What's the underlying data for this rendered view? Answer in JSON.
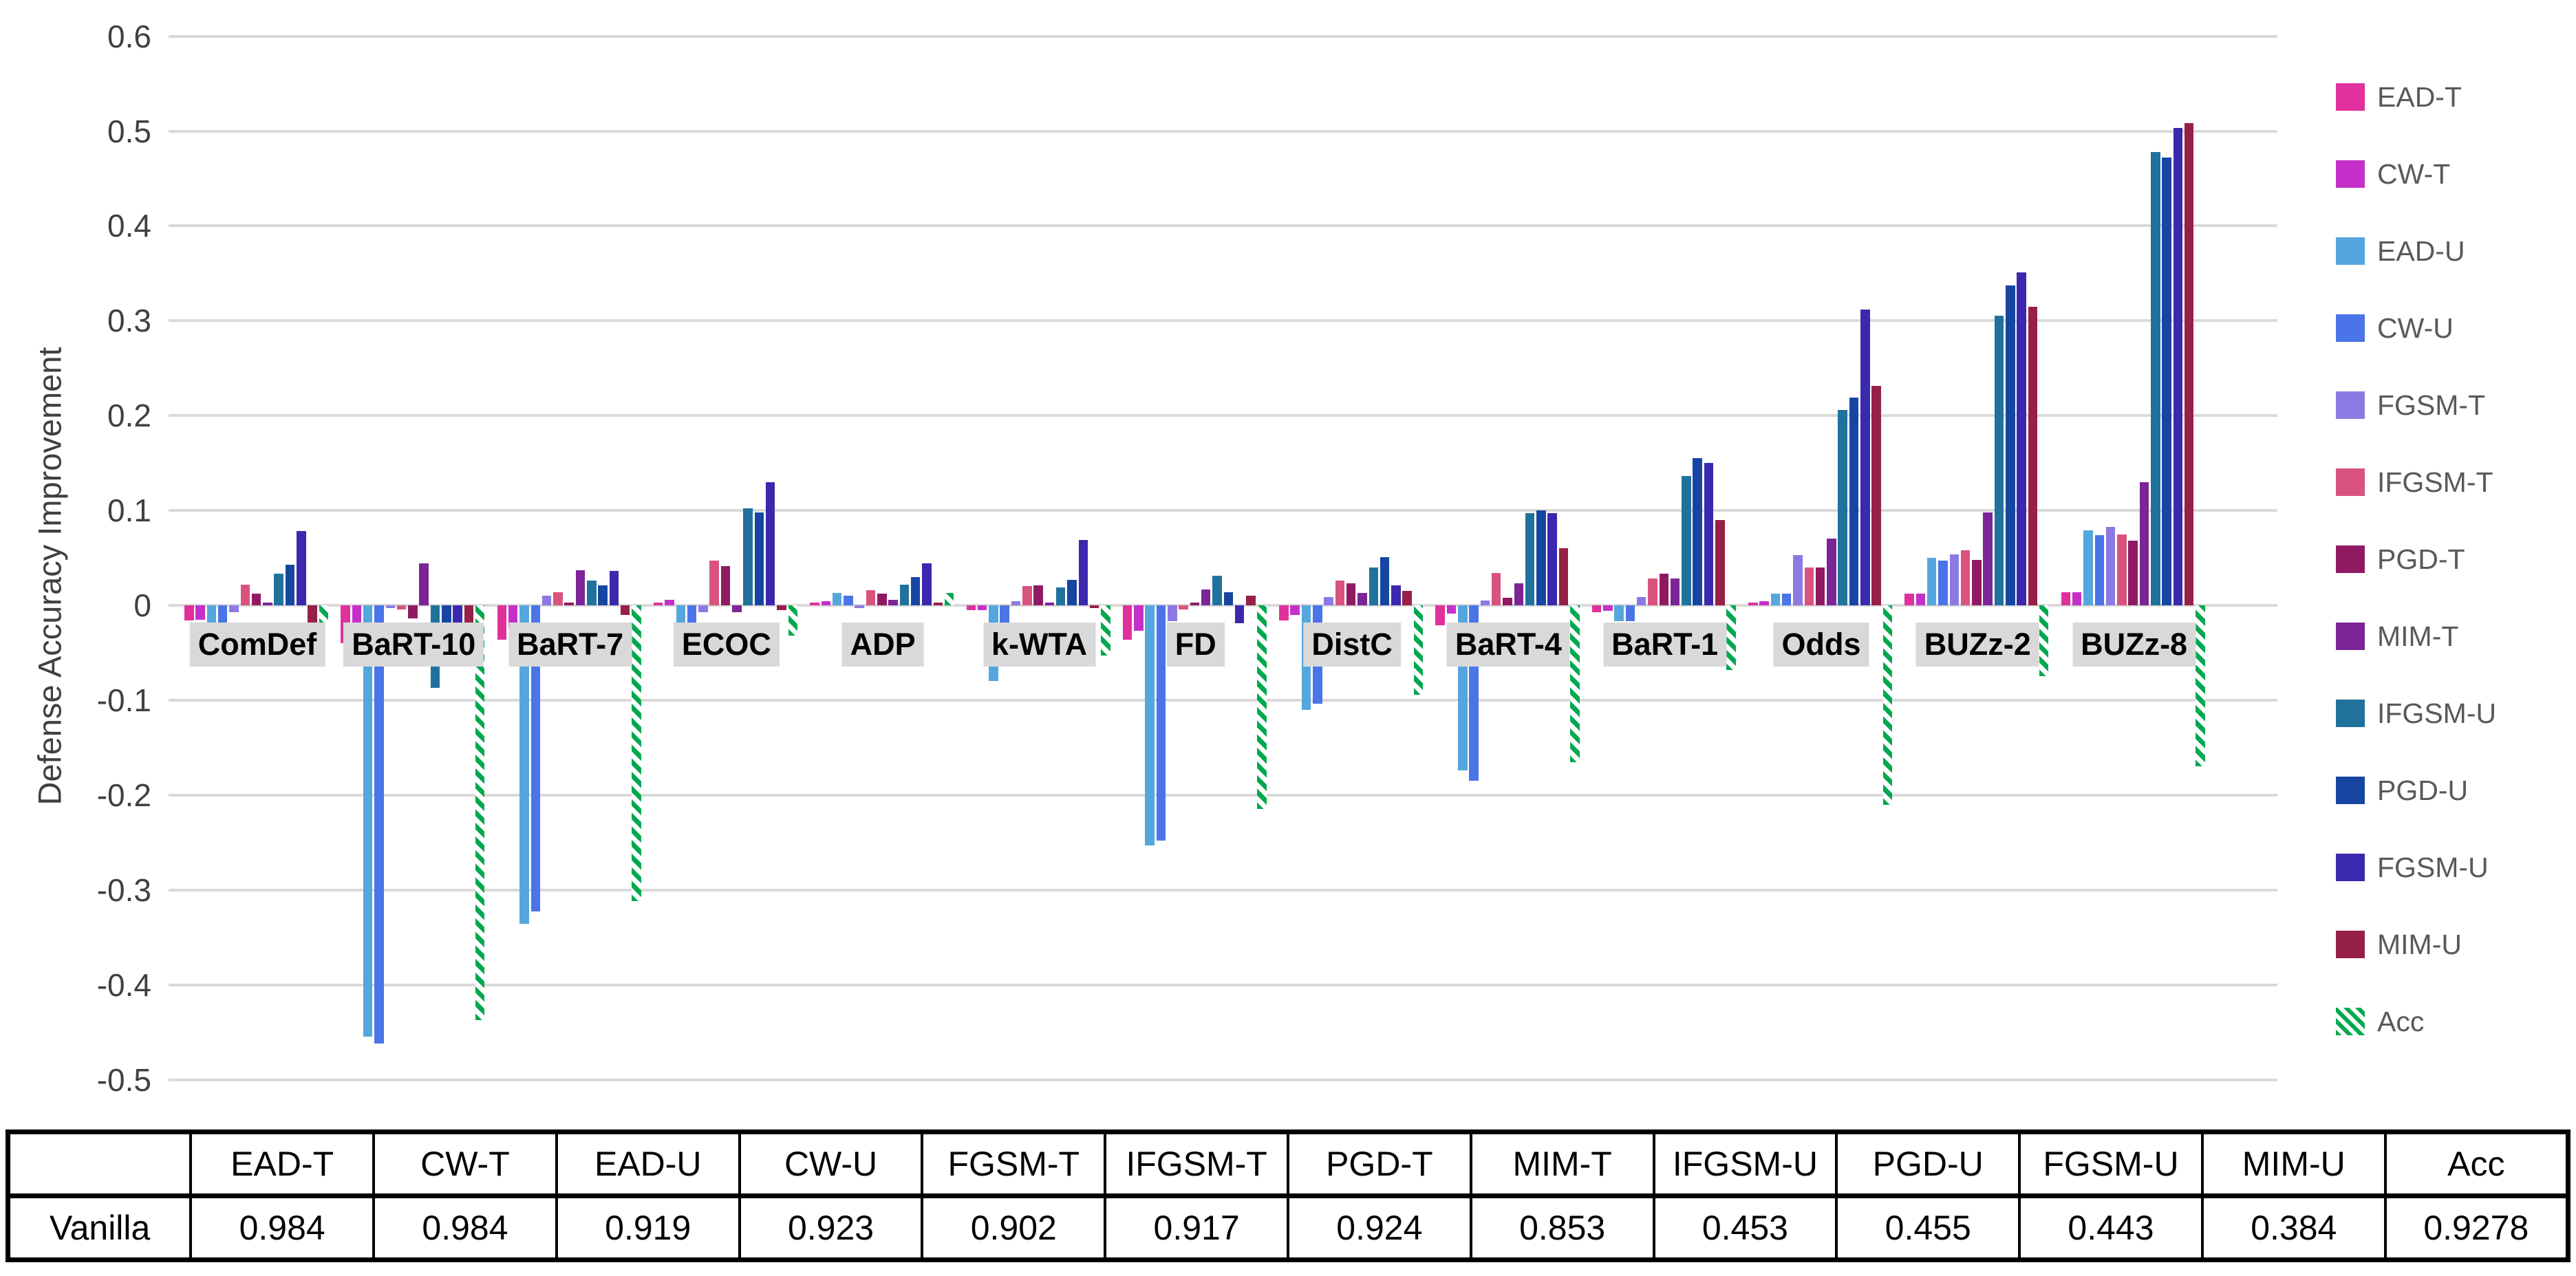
{
  "chart_data": {
    "type": "bar",
    "title": "",
    "xlabel": "",
    "ylabel": "Defense Accuracy Improvement",
    "ylim": [
      -0.5,
      0.6
    ],
    "ytick_values": [
      0.6,
      0.5,
      0.4,
      0.3,
      0.2,
      0.1,
      0,
      -0.1,
      -0.2,
      -0.3,
      -0.4,
      -0.5
    ],
    "ytick_labels": [
      "0.6",
      "0.5",
      "0.4",
      "0.3",
      "0.2",
      "0.1",
      "0",
      "-0.1",
      "-0.2",
      "-0.3",
      "-0.4",
      "-0.5"
    ],
    "grid": "horizontal-only",
    "legend_position": "right",
    "categories": [
      "ComDef",
      "BaRT-10",
      "BaRT-7",
      "ECOC",
      "ADP",
      "k-WTA",
      "FD",
      "DistC",
      "BaRT-4",
      "BaRT-1",
      "Odds",
      "BUZz-2",
      "BUZz-8"
    ],
    "series": [
      {
        "name": "EAD-T",
        "color": "#e0309b",
        "pattern": "solid",
        "values": [
          -0.016,
          -0.04,
          -0.036,
          0.003,
          0.003,
          -0.005,
          -0.036,
          -0.016,
          -0.021,
          -0.007,
          0.003,
          0.012,
          0.014
        ]
      },
      {
        "name": "CW-T",
        "color": "#c430c9",
        "pattern": "solid",
        "values": [
          -0.015,
          -0.04,
          -0.025,
          0.006,
          0.004,
          -0.005,
          -0.027,
          -0.01,
          -0.009,
          -0.006,
          0.004,
          0.012,
          0.014
        ]
      },
      {
        "name": "EAD-U",
        "color": "#55a6de",
        "pattern": "solid",
        "values": [
          -0.018,
          -0.455,
          -0.336,
          -0.022,
          0.013,
          -0.08,
          -0.253,
          -0.11,
          -0.174,
          -0.017,
          0.012,
          0.05,
          0.079
        ]
      },
      {
        "name": "CW-U",
        "color": "#4a74e8",
        "pattern": "solid",
        "values": [
          -0.018,
          -0.462,
          -0.323,
          -0.018,
          0.01,
          -0.025,
          -0.248,
          -0.104,
          -0.185,
          -0.017,
          0.012,
          0.047,
          0.074
        ]
      },
      {
        "name": "FGSM-T",
        "color": "#8d79e3",
        "pattern": "solid",
        "values": [
          -0.007,
          -0.003,
          0.01,
          -0.007,
          -0.003,
          0.004,
          -0.017,
          0.009,
          0.005,
          0.009,
          0.053,
          0.054,
          0.083
        ]
      },
      {
        "name": "IFGSM-T",
        "color": "#d9537e",
        "pattern": "solid",
        "values": [
          0.022,
          -0.004,
          0.014,
          0.047,
          0.016,
          0.02,
          -0.004,
          0.026,
          0.034,
          0.028,
          0.04,
          0.058,
          0.075
        ]
      },
      {
        "name": "PGD-T",
        "color": "#8f1a63",
        "pattern": "solid",
        "values": [
          0.012,
          -0.014,
          0.003,
          0.041,
          0.012,
          0.021,
          0.001,
          0.023,
          0.008,
          0.033,
          0.04,
          0.048,
          0.068
        ]
      },
      {
        "name": "MIM-T",
        "color": "#7b2596",
        "pattern": "solid",
        "values": [
          0.003,
          0.044,
          0.037,
          -0.007,
          0.006,
          0.003,
          0.017,
          0.013,
          0.023,
          0.028,
          0.07,
          0.098,
          0.13
        ]
      },
      {
        "name": "IFGSM-U",
        "color": "#20729c",
        "pattern": "solid",
        "values": [
          0.033,
          -0.087,
          0.026,
          0.102,
          0.022,
          0.019,
          0.031,
          0.04,
          0.097,
          0.136,
          0.206,
          0.305,
          0.478
        ]
      },
      {
        "name": "PGD-U",
        "color": "#1746a2",
        "pattern": "solid",
        "values": [
          0.043,
          -0.05,
          0.021,
          0.098,
          0.03,
          0.027,
          0.014,
          0.051,
          0.1,
          0.155,
          0.219,
          0.337,
          0.472
        ]
      },
      {
        "name": "FGSM-U",
        "color": "#3a28ae",
        "pattern": "solid",
        "values": [
          0.078,
          -0.05,
          0.036,
          0.13,
          0.044,
          0.069,
          -0.019,
          0.021,
          0.097,
          0.15,
          0.312,
          0.351,
          0.503
        ]
      },
      {
        "name": "MIM-U",
        "color": "#962047",
        "pattern": "solid",
        "values": [
          -0.018,
          -0.05,
          -0.01,
          -0.005,
          0.002,
          -0.003,
          0.01,
          0.015,
          0.06,
          0.09,
          0.231,
          0.315,
          0.508
        ]
      },
      {
        "name": "Acc",
        "color": "#00a84f",
        "pattern": "green-diagonal-hatch",
        "values": [
          -0.02,
          -0.437,
          -0.312,
          -0.032,
          0.013,
          -0.053,
          -0.215,
          -0.094,
          -0.165,
          -0.068,
          -0.21,
          -0.075,
          -0.17
        ]
      }
    ]
  },
  "table": {
    "corner_label": "",
    "row_label": "Vanilla",
    "columns": [
      "EAD-T",
      "CW-T",
      "EAD-U",
      "CW-U",
      "FGSM-T",
      "IFGSM-T",
      "PGD-T",
      "MIM-T",
      "IFGSM-U",
      "PGD-U",
      "FGSM-U",
      "MIM-U",
      "Acc"
    ],
    "values": [
      "0.984",
      "0.984",
      "0.919",
      "0.923",
      "0.902",
      "0.917",
      "0.924",
      "0.853",
      "0.453",
      "0.455",
      "0.443",
      "0.384",
      "0.9278"
    ]
  }
}
